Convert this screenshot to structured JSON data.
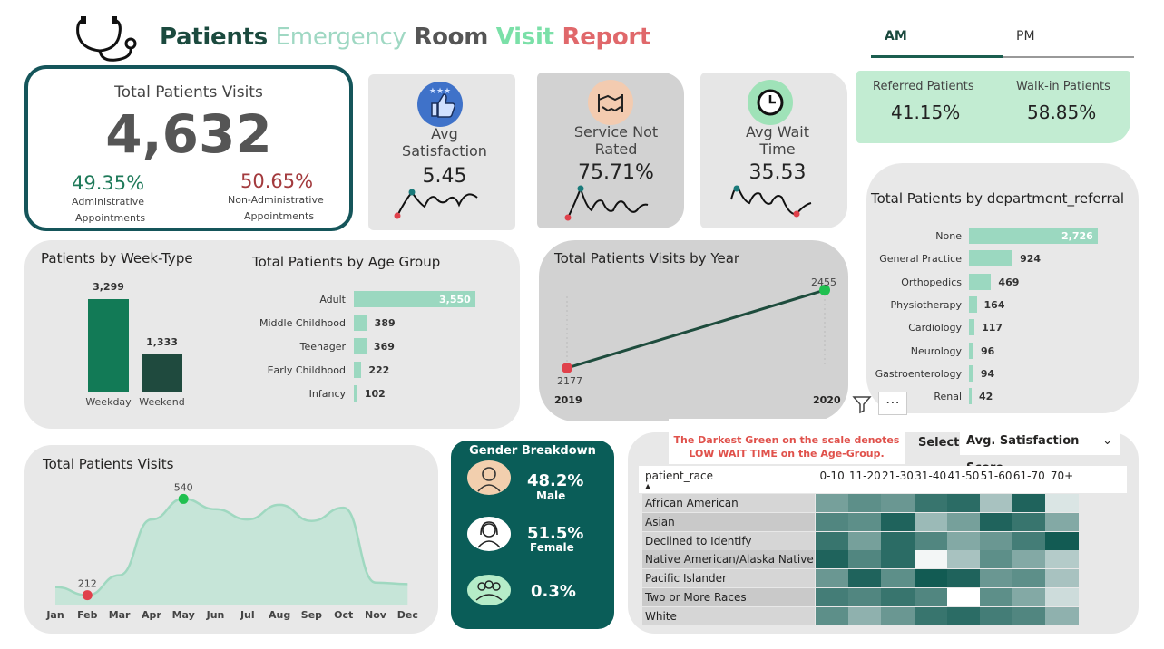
{
  "header": {
    "title_words": [
      {
        "text": "Patients",
        "color": "#1b4a3e"
      },
      {
        "text": "Emergency",
        "color": "#9fd8c3"
      },
      {
        "text": "Room",
        "color": "#555555"
      },
      {
        "text": "Visit",
        "color": "#7be0a8"
      },
      {
        "text": "Report",
        "color": "#e0686b"
      }
    ],
    "tabs": [
      {
        "label": "AM",
        "active": true
      },
      {
        "label": "PM",
        "active": false
      }
    ]
  },
  "total_visits": {
    "title": "Total Patients Visits",
    "value": "4,632",
    "admin_pct": "49.35%",
    "admin_label_1": "Administrative",
    "admin_label_2": "Appointments",
    "nonadmin_pct": "50.65%",
    "nonadmin_label_1": "Non-Administrative",
    "nonadmin_label_2": "Appointments"
  },
  "kpis": {
    "satisfaction": {
      "title_1": "Avg",
      "title_2": "Satisfaction",
      "value": "5.45",
      "icon": "thumbs-up-stars-icon"
    },
    "not_rated": {
      "title_1": "Service Not",
      "title_2": "Rated",
      "value": "75.71%",
      "icon": "handshake-icon"
    },
    "wait": {
      "title_1": "Avg Wait",
      "title_2": "Time",
      "value": "35.53",
      "icon": "clock-icon"
    }
  },
  "referral": {
    "referred_label": "Referred Patients",
    "referred_value": "41.15%",
    "walkin_label": "Walk-in Patients",
    "walkin_value": "58.85%"
  },
  "department": {
    "title": "Total Patients by department_referral",
    "rows": [
      {
        "label": "None",
        "value": 2726,
        "text": "2,726"
      },
      {
        "label": "General Practice",
        "value": 924,
        "text": "924"
      },
      {
        "label": "Orthopedics",
        "value": 469,
        "text": "469"
      },
      {
        "label": "Physiotherapy",
        "value": 164,
        "text": "164"
      },
      {
        "label": "Cardiology",
        "value": 117,
        "text": "117"
      },
      {
        "label": "Neurology",
        "value": 96,
        "text": "96"
      },
      {
        "label": "Gastroenterology",
        "value": 94,
        "text": "94"
      },
      {
        "label": "Renal",
        "value": 42,
        "text": "42"
      }
    ]
  },
  "week_type": {
    "title": "Patients by Week-Type",
    "bars": [
      {
        "label": "Weekday",
        "value": 3299,
        "text": "3,299",
        "color": "#127a56"
      },
      {
        "label": "Weekend",
        "value": 1333,
        "text": "1,333",
        "color": "#1f4a3e"
      }
    ]
  },
  "age_group": {
    "title": "Total Patients by Age Group",
    "rows": [
      {
        "label": "Adult",
        "value": 3550,
        "text": "3,550"
      },
      {
        "label": "Middle Childhood",
        "value": 389,
        "text": "389"
      },
      {
        "label": "Teenager",
        "value": 369,
        "text": "369"
      },
      {
        "label": "Early Childhood",
        "value": 222,
        "text": "222"
      },
      {
        "label": "Infancy",
        "value": 102,
        "text": "102"
      }
    ]
  },
  "yearly": {
    "title": "Total Patients Visits by Year",
    "start_year": "2019",
    "end_year": "2020",
    "start_value": "2177",
    "end_value": "2455"
  },
  "monthly": {
    "title": "Total Patients Visits",
    "months": [
      "Jan",
      "Feb",
      "Mar",
      "Apr",
      "May",
      "Jun",
      "Jul",
      "Aug",
      "Sep",
      "Oct",
      "Nov",
      "Dec"
    ],
    "min_label": "212",
    "max_label": "540"
  },
  "gender": {
    "title": "Gender Breakdown",
    "male_pct": "48.2%",
    "male_label": "Male",
    "female_pct": "51.5%",
    "female_label": "Female",
    "other_pct": "0.3%"
  },
  "heatmap": {
    "note_1": "The Darkest Green on the scale denotes",
    "note_2": "LOW WAIT TIME on the Age-Group.",
    "select_label": "Select",
    "select_value": "Avg. Satisfaction Score",
    "row_header": "patient_race",
    "columns": [
      "0-10",
      "11-20",
      "21-30",
      "31-40",
      "41-50",
      "51-60",
      "61-70",
      "70+"
    ],
    "rows": [
      "African American",
      "Asian",
      "Declined to Identify",
      "Native American/Alaska Native",
      "Pacific Islander",
      "Two or More Races",
      "White"
    ]
  },
  "chart_data": [
    {
      "type": "bar",
      "title": "Patients by Week-Type",
      "categories": [
        "Weekday",
        "Weekend"
      ],
      "values": [
        3299,
        1333
      ]
    },
    {
      "type": "bar",
      "title": "Total Patients by Age Group",
      "categories": [
        "Adult",
        "Middle Childhood",
        "Teenager",
        "Early Childhood",
        "Infancy"
      ],
      "values": [
        3550,
        389,
        369,
        222,
        102
      ]
    },
    {
      "type": "bar",
      "title": "Total Patients by department_referral",
      "categories": [
        "None",
        "General Practice",
        "Orthopedics",
        "Physiotherapy",
        "Cardiology",
        "Neurology",
        "Gastroenterology",
        "Renal"
      ],
      "values": [
        2726,
        924,
        469,
        164,
        117,
        96,
        94,
        42
      ]
    },
    {
      "type": "line",
      "title": "Total Patients Visits by Year",
      "x": [
        "2019",
        "2020"
      ],
      "values": [
        2177,
        2455
      ]
    },
    {
      "type": "area",
      "title": "Total Patients Visits",
      "x": [
        "Jan",
        "Feb",
        "Mar",
        "Apr",
        "May",
        "Jun",
        "Jul",
        "Aug",
        "Sep",
        "Oct",
        "Nov",
        "Dec"
      ],
      "values": [
        240,
        212,
        280,
        470,
        540,
        505,
        470,
        520,
        465,
        510,
        255,
        250
      ],
      "ylim": [
        180,
        600
      ]
    },
    {
      "type": "heatmap",
      "title": "Avg. Satisfaction Score by patient_race and Age-Group",
      "x": [
        "0-10",
        "11-20",
        "21-30",
        "31-40",
        "41-50",
        "51-60",
        "61-70",
        "70+"
      ],
      "y": [
        "African American",
        "Asian",
        "Declined to Identify",
        "Native American/Alaska Native",
        "Pacific Islander",
        "Two or More Races",
        "White"
      ],
      "values": [
        [
          0.45,
          0.35,
          0.4,
          0.2,
          0.15,
          0.65,
          0.1,
          0.85
        ],
        [
          0.3,
          0.35,
          0.1,
          0.6,
          0.45,
          0.1,
          0.2,
          0.5
        ],
        [
          0.2,
          0.45,
          0.15,
          0.3,
          0.5,
          0.4,
          0.25,
          0.05
        ],
        [
          0.1,
          0.3,
          0.15,
          0.95,
          0.65,
          0.35,
          0.5,
          0.7
        ],
        [
          0.4,
          0.1,
          0.35,
          0.05,
          0.1,
          0.4,
          0.35,
          0.65
        ],
        [
          0.25,
          0.3,
          0.2,
          0.3,
          1.0,
          0.35,
          0.5,
          0.8
        ],
        [
          0.35,
          0.55,
          0.4,
          0.2,
          0.15,
          0.25,
          0.3,
          0.55
        ]
      ]
    }
  ]
}
